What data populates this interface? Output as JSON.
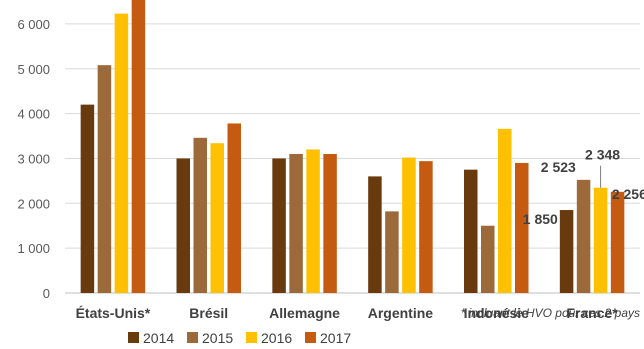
{
  "chart_data": {
    "type": "bar",
    "categories": [
      "États-Unis*",
      "Brésil",
      "Allemagne",
      "Argentine",
      "Indonésie",
      "France*"
    ],
    "series": [
      {
        "name": "2014",
        "color": "#6a3a0f",
        "values": [
          4200,
          3000,
          3000,
          2600,
          2750,
          1850
        ]
      },
      {
        "name": "2015",
        "color": "#9c6a3a",
        "values": [
          5080,
          3460,
          3100,
          1820,
          1500,
          2523
        ]
      },
      {
        "name": "2016",
        "color": "#ffc000",
        "values": [
          6230,
          3340,
          3200,
          3020,
          3660,
          2348
        ]
      },
      {
        "name": "2017",
        "color": "#c55a11",
        "values": [
          6700,
          3780,
          3100,
          2940,
          2900,
          2256
        ]
      }
    ],
    "ylim": [
      0,
      6600
    ],
    "yticks": [
      0,
      1000,
      2000,
      3000,
      4000,
      5000,
      6000
    ],
    "ytick_labels": [
      "0",
      "1 000",
      "2 000",
      "3 000",
      "4 000",
      "5 000",
      "6 000"
    ],
    "data_labels": [
      {
        "category": "France*",
        "series": "2014",
        "text": "1 850"
      },
      {
        "category": "France*",
        "series": "2015",
        "text": "2 523"
      },
      {
        "category": "France*",
        "series": "2016",
        "text": "2 348"
      },
      {
        "category": "France*",
        "series": "2017",
        "text": "2 256"
      }
    ],
    "legend_position": "bottom",
    "grid": true,
    "footnote": "* incluant le HVO pour ces 2 pays",
    "title": "",
    "xlabel": "",
    "ylabel": ""
  }
}
